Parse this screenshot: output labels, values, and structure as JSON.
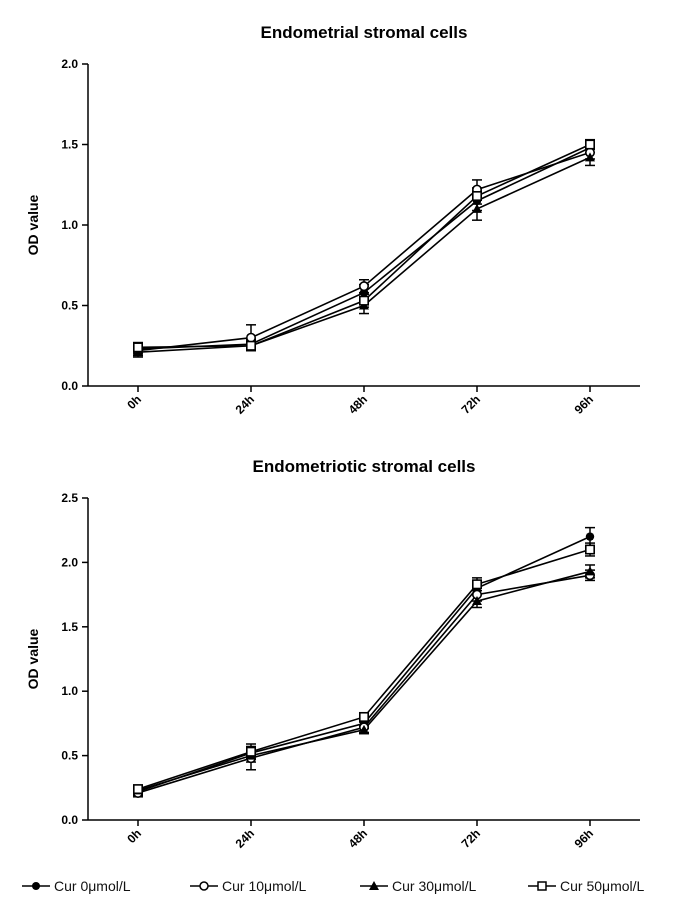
{
  "chart_data": [
    {
      "type": "line",
      "title": "Endometrial stromal cells",
      "xlabel": "",
      "ylabel": "OD value",
      "categories": [
        "0h",
        "24h",
        "48h",
        "72h",
        "96h"
      ],
      "ylim": [
        0,
        2.0
      ],
      "yticks": [
        "0.0",
        "0.5",
        "1.0",
        "1.5",
        "2.0"
      ],
      "grid": false,
      "series": [
        {
          "name": "Cur 0μmol/L",
          "marker": "filled-circle",
          "values": [
            0.23,
            0.26,
            0.58,
            1.15,
            1.48
          ],
          "errors": [
            0.03,
            0.03,
            0.05,
            0.06,
            0.03
          ]
        },
        {
          "name": "Cur 10μmol/L",
          "marker": "open-circle",
          "values": [
            0.22,
            0.3,
            0.62,
            1.22,
            1.45
          ],
          "errors": [
            0.03,
            0.08,
            0.04,
            0.06,
            0.04
          ]
        },
        {
          "name": "Cur 30μmol/L",
          "marker": "filled-triangle",
          "values": [
            0.21,
            0.25,
            0.5,
            1.1,
            1.42
          ],
          "errors": [
            0.03,
            0.03,
            0.05,
            0.07,
            0.05
          ]
        },
        {
          "name": "Cur 50μmol/L",
          "marker": "open-square",
          "values": [
            0.24,
            0.25,
            0.53,
            1.18,
            1.5
          ],
          "errors": [
            0.03,
            0.03,
            0.04,
            0.05,
            0.03
          ]
        }
      ]
    },
    {
      "type": "line",
      "title": "Endometriotic stromal cells",
      "xlabel": "",
      "ylabel": "OD value",
      "categories": [
        "0h",
        "24h",
        "48h",
        "72h",
        "96h"
      ],
      "ylim": [
        0,
        2.5
      ],
      "yticks": [
        "0.0",
        "0.5",
        "1.0",
        "1.5",
        "2.0",
        "2.5"
      ],
      "grid": false,
      "series": [
        {
          "name": "Cur 0μmol/L",
          "marker": "filled-circle",
          "values": [
            0.22,
            0.52,
            0.75,
            1.8,
            2.2
          ],
          "errors": [
            0.03,
            0.05,
            0.04,
            0.05,
            0.07
          ]
        },
        {
          "name": "Cur 10μmol/L",
          "marker": "open-circle",
          "values": [
            0.21,
            0.48,
            0.72,
            1.75,
            1.9
          ],
          "errors": [
            0.03,
            0.09,
            0.04,
            0.05,
            0.04
          ]
        },
        {
          "name": "Cur 30μmol/L",
          "marker": "filled-triangle",
          "values": [
            0.23,
            0.5,
            0.7,
            1.7,
            1.93
          ],
          "errors": [
            0.03,
            0.05,
            0.03,
            0.05,
            0.05
          ]
        },
        {
          "name": "Cur 50μmol/L",
          "marker": "open-square",
          "values": [
            0.24,
            0.53,
            0.8,
            1.83,
            2.1
          ],
          "errors": [
            0.03,
            0.06,
            0.03,
            0.05,
            0.05
          ]
        }
      ]
    }
  ],
  "legend": {
    "placement": "bottom",
    "items": [
      {
        "label": "Cur 0μmol/L",
        "marker": "filled-circle"
      },
      {
        "label": "Cur 10μmol/L",
        "marker": "open-circle"
      },
      {
        "label": "Cur 30μmol/L",
        "marker": "filled-triangle"
      },
      {
        "label": "Cur 50μmol/L",
        "marker": "open-square"
      }
    ]
  },
  "colors": {
    "line": "#000000",
    "background": "#ffffff"
  }
}
